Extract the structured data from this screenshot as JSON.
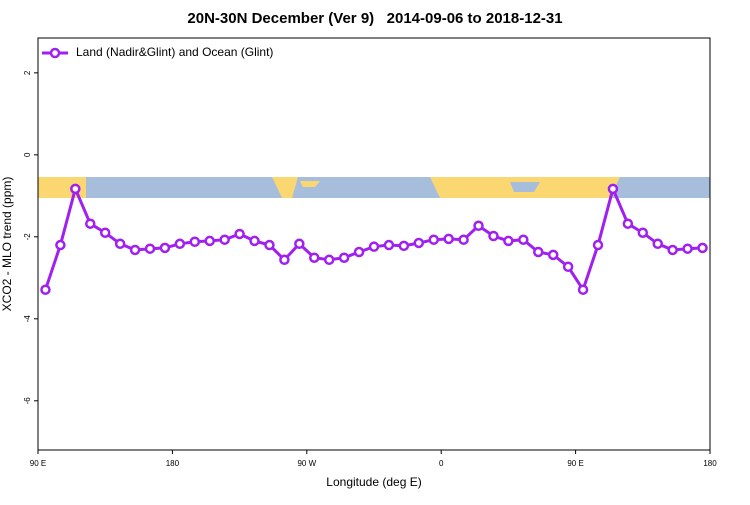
{
  "chart_data": {
    "type": "line",
    "title": "20N-30N December (Ver 9)   2014-09-06 to 2018-12-31",
    "x_label": "Longitude (deg E)",
    "y_label": "XCO2 - MLO trend (ppm)",
    "x": [
      95,
      105,
      115,
      125,
      135,
      145,
      155,
      165,
      175,
      185,
      195,
      205,
      215,
      225,
      235,
      245,
      255,
      265,
      275,
      285,
      295,
      305,
      315,
      325,
      335,
      345,
      355,
      365,
      375,
      385,
      395,
      405,
      415,
      425,
      435,
      445,
      455,
      465,
      475,
      485,
      495,
      505,
      515,
      525,
      535
    ],
    "series": [
      {
        "name": "Land (Nadir&Glint) and Ocean (Glint)",
        "color": "#a020f0",
        "values": [
          -3.29,
          -2.2,
          -0.83,
          -1.68,
          -1.9,
          -2.17,
          -2.32,
          -2.29,
          -2.27,
          -2.17,
          -2.12,
          -2.1,
          -2.07,
          -1.93,
          -2.1,
          -2.2,
          -2.56,
          -2.17,
          -2.51,
          -2.56,
          -2.51,
          -2.37,
          -2.24,
          -2.2,
          -2.22,
          -2.15,
          -2.07,
          -2.05,
          -2.07,
          -1.73,
          -1.98,
          -2.1,
          -2.07,
          -2.37,
          -2.44,
          -2.73,
          -3.29,
          -2.2,
          -0.83,
          -1.68,
          -1.9,
          -2.17,
          -2.32,
          -2.29,
          -2.27
        ]
      }
    ],
    "xlim": [
      90,
      540
    ],
    "xticks": [
      {
        "value": 90,
        "label": "90 E"
      },
      180,
      {
        "value": 270,
        "label": "90 W"
      },
      {
        "value": 360,
        "label": "0"
      },
      {
        "value": 450,
        "label": "90 E"
      },
      {
        "value": 540,
        "label": "180"
      }
    ],
    "ylim": [
      -7.2,
      2.85
    ],
    "yticks": [
      2,
      0,
      -2,
      -4,
      -6
    ],
    "legend": "top-left"
  }
}
